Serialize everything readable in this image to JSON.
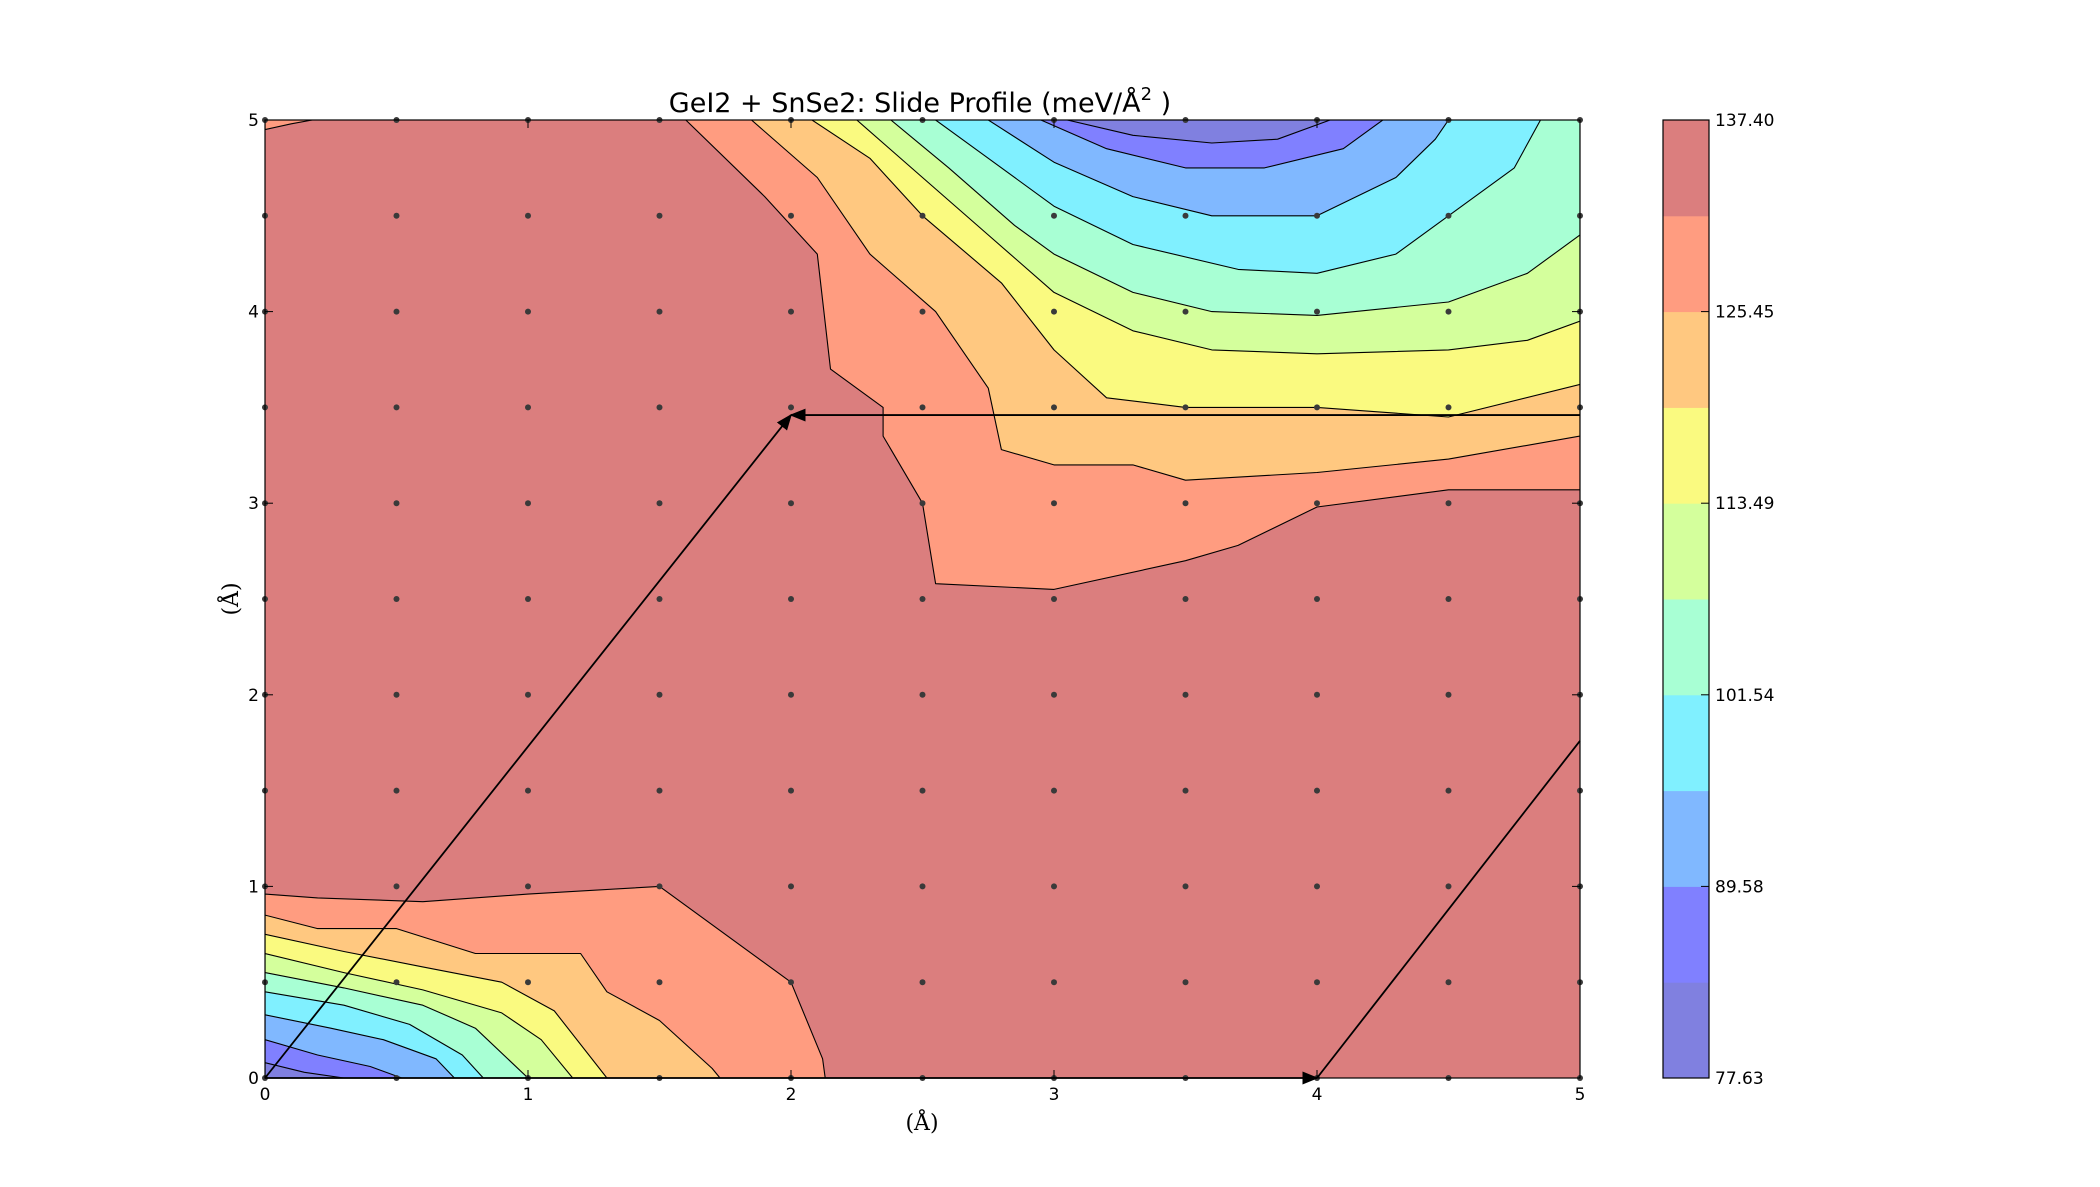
{
  "chart_data": {
    "type": "contour",
    "title": "GeI2 + SnSe2: Slide Profile (meV/Å",
    "title_superscript": "2",
    "title_suffix": " )",
    "xlabel": "(Å)",
    "ylabel": "(Å)",
    "xlim": [
      0,
      5
    ],
    "ylim": [
      0,
      5
    ],
    "xticks": [
      "0",
      "1",
      "2",
      "3",
      "4",
      "5"
    ],
    "yticks": [
      "0",
      "1",
      "2",
      "3",
      "4",
      "5"
    ],
    "grid": false,
    "colorbar": {
      "ticks": [
        "137.40",
        "125.45",
        "113.49",
        "101.54",
        "89.58",
        "77.63"
      ],
      "range": [
        77.63,
        137.4
      ],
      "levels": 8,
      "colors": [
        "#8080e0",
        "#8080ff",
        "#80b8ff",
        "#80f0ff",
        "#a8ffd4",
        "#d4ff9c",
        "#fafa80",
        "#ffc880",
        "#ff9c80",
        "#db7e7e"
      ]
    },
    "sample_grid": {
      "step": 0.5,
      "x_range": [
        0,
        5
      ],
      "y_range": [
        0,
        5
      ]
    },
    "path_vectors": [
      {
        "from": [
          0,
          0
        ],
        "to": [
          4,
          0
        ]
      },
      {
        "from": [
          0,
          0
        ],
        "to": [
          2,
          3.46
        ]
      },
      {
        "from": [
          5,
          3.46
        ],
        "to": [
          2,
          3.46
        ]
      },
      {
        "from": [
          4,
          0
        ],
        "to": [
          5,
          1.76
        ]
      }
    ],
    "contour_regions": [
      {
        "level": 9,
        "points": [
          [
            0,
            0
          ],
          [
            5,
            0
          ],
          [
            5,
            5
          ],
          [
            0,
            5
          ]
        ]
      },
      {
        "level": 8,
        "points": [
          [
            0,
            0
          ],
          [
            0,
            0.96
          ],
          [
            0.2,
            0.94
          ],
          [
            0.6,
            0.92
          ],
          [
            1.0,
            0.96
          ],
          [
            1.5,
            1.0
          ],
          [
            2.0,
            0.5
          ],
          [
            2.12,
            0.1
          ],
          [
            2.13,
            0
          ]
        ]
      },
      {
        "level": 8,
        "points": [
          [
            1.6,
            5
          ],
          [
            1.9,
            4.6
          ],
          [
            2.1,
            4.3
          ],
          [
            2.15,
            3.7
          ],
          [
            2.35,
            3.5
          ],
          [
            2.35,
            3.35
          ],
          [
            2.5,
            3.0
          ],
          [
            2.55,
            2.58
          ],
          [
            3.0,
            2.55
          ],
          [
            3.5,
            2.7
          ],
          [
            3.7,
            2.78
          ],
          [
            4.0,
            2.98
          ],
          [
            4.5,
            3.07
          ],
          [
            5.0,
            3.07
          ],
          [
            5,
            5
          ]
        ]
      },
      {
        "level": 8,
        "points": [
          [
            0,
            4.95
          ],
          [
            0.1,
            4.98
          ],
          [
            0.18,
            5
          ],
          [
            0,
            5
          ]
        ]
      },
      {
        "level": 7,
        "points": [
          [
            0,
            0
          ],
          [
            0,
            0.85
          ],
          [
            0.2,
            0.78
          ],
          [
            0.5,
            0.78
          ],
          [
            0.8,
            0.65
          ],
          [
            1.2,
            0.65
          ],
          [
            1.3,
            0.45
          ],
          [
            1.5,
            0.3
          ],
          [
            1.7,
            0.05
          ],
          [
            1.73,
            0
          ]
        ]
      },
      {
        "level": 7,
        "points": [
          [
            1.85,
            5
          ],
          [
            2.1,
            4.7
          ],
          [
            2.3,
            4.3
          ],
          [
            2.55,
            4.0
          ],
          [
            2.75,
            3.6
          ],
          [
            2.8,
            3.28
          ],
          [
            3.0,
            3.2
          ],
          [
            3.3,
            3.2
          ],
          [
            3.5,
            3.12
          ],
          [
            4.0,
            3.16
          ],
          [
            4.5,
            3.23
          ],
          [
            5.0,
            3.35
          ],
          [
            5,
            5
          ]
        ]
      },
      {
        "level": 6,
        "points": [
          [
            0,
            0
          ],
          [
            0,
            0.75
          ],
          [
            0.3,
            0.66
          ],
          [
            0.6,
            0.58
          ],
          [
            0.9,
            0.5
          ],
          [
            1.1,
            0.35
          ],
          [
            1.3,
            0
          ],
          [
            0,
            0
          ]
        ]
      },
      {
        "level": 6,
        "points": [
          [
            2.08,
            5
          ],
          [
            2.3,
            4.8
          ],
          [
            2.5,
            4.5
          ],
          [
            2.8,
            4.15
          ],
          [
            3.0,
            3.8
          ],
          [
            3.2,
            3.55
          ],
          [
            3.5,
            3.5
          ],
          [
            4.0,
            3.5
          ],
          [
            4.5,
            3.45
          ],
          [
            5.0,
            3.62
          ],
          [
            5,
            5
          ]
        ]
      },
      {
        "level": 5,
        "points": [
          [
            0,
            0
          ],
          [
            0,
            0.65
          ],
          [
            0.3,
            0.55
          ],
          [
            0.6,
            0.46
          ],
          [
            0.9,
            0.34
          ],
          [
            1.05,
            0.2
          ],
          [
            1.17,
            0
          ],
          [
            0,
            0
          ]
        ]
      },
      {
        "level": 5,
        "points": [
          [
            2.25,
            5
          ],
          [
            2.5,
            4.7
          ],
          [
            2.75,
            4.4
          ],
          [
            3.0,
            4.1
          ],
          [
            3.3,
            3.9
          ],
          [
            3.6,
            3.8
          ],
          [
            4.0,
            3.78
          ],
          [
            4.5,
            3.8
          ],
          [
            4.8,
            3.85
          ],
          [
            5.0,
            3.95
          ],
          [
            5,
            5
          ]
        ]
      },
      {
        "level": 4,
        "points": [
          [
            0,
            0
          ],
          [
            0,
            0.55
          ],
          [
            0.3,
            0.47
          ],
          [
            0.6,
            0.38
          ],
          [
            0.8,
            0.26
          ],
          [
            1.0,
            0
          ],
          [
            0,
            0
          ]
        ]
      },
      {
        "level": 4,
        "points": [
          [
            2.38,
            5
          ],
          [
            2.6,
            4.75
          ],
          [
            2.85,
            4.45
          ],
          [
            3.0,
            4.3
          ],
          [
            3.3,
            4.1
          ],
          [
            3.6,
            4.0
          ],
          [
            4.0,
            3.98
          ],
          [
            4.5,
            4.05
          ],
          [
            4.8,
            4.2
          ],
          [
            5.0,
            4.4
          ],
          [
            5,
            5
          ]
        ]
      },
      {
        "level": 3,
        "points": [
          [
            0,
            0
          ],
          [
            0,
            0.45
          ],
          [
            0.3,
            0.38
          ],
          [
            0.55,
            0.28
          ],
          [
            0.75,
            0.12
          ],
          [
            0.83,
            0
          ],
          [
            0,
            0
          ]
        ]
      },
      {
        "level": 3,
        "points": [
          [
            2.55,
            5
          ],
          [
            2.75,
            4.8
          ],
          [
            3.0,
            4.55
          ],
          [
            3.3,
            4.35
          ],
          [
            3.7,
            4.22
          ],
          [
            4.0,
            4.2
          ],
          [
            4.3,
            4.3
          ],
          [
            4.5,
            4.5
          ],
          [
            4.75,
            4.75
          ],
          [
            4.85,
            5
          ]
        ]
      },
      {
        "level": 2,
        "points": [
          [
            0,
            0
          ],
          [
            0,
            0.33
          ],
          [
            0.25,
            0.26
          ],
          [
            0.45,
            0.2
          ],
          [
            0.65,
            0.1
          ],
          [
            0.72,
            0
          ]
        ]
      },
      {
        "level": 2,
        "points": [
          [
            2.75,
            5
          ],
          [
            3.0,
            4.78
          ],
          [
            3.3,
            4.6
          ],
          [
            3.6,
            4.5
          ],
          [
            4.0,
            4.5
          ],
          [
            4.3,
            4.7
          ],
          [
            4.45,
            4.9
          ],
          [
            4.5,
            5
          ]
        ]
      },
      {
        "level": 1,
        "points": [
          [
            0,
            0
          ],
          [
            0,
            0.2
          ],
          [
            0.2,
            0.12
          ],
          [
            0.4,
            0.06
          ],
          [
            0.52,
            0
          ]
        ]
      },
      {
        "level": 1,
        "points": [
          [
            2.95,
            5
          ],
          [
            3.2,
            4.85
          ],
          [
            3.5,
            4.75
          ],
          [
            3.8,
            4.75
          ],
          [
            4.1,
            4.85
          ],
          [
            4.25,
            5
          ]
        ]
      },
      {
        "level": 0,
        "points": [
          [
            0,
            0
          ],
          [
            0,
            0.08
          ],
          [
            0.15,
            0.03
          ],
          [
            0.3,
            0
          ]
        ]
      },
      {
        "level": 0,
        "points": [
          [
            3.05,
            5
          ],
          [
            3.3,
            4.92
          ],
          [
            3.6,
            4.88
          ],
          [
            3.85,
            4.9
          ],
          [
            4.05,
            5
          ]
        ]
      }
    ]
  }
}
